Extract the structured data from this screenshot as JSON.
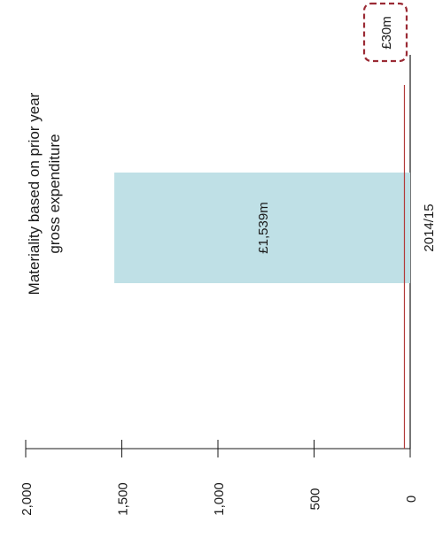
{
  "chart_data": {
    "type": "bar",
    "orientation": "rotated-90-ccw",
    "title_lines": [
      "Materiality based on prior year",
      "gross expenditure"
    ],
    "categories": [
      "2014/15"
    ],
    "values": [
      1539
    ],
    "value_labels": [
      "£1,539m"
    ],
    "reference_line": {
      "value": 30,
      "label": "£30m"
    },
    "ylim": [
      0,
      2000
    ],
    "yticks": [
      0,
      500,
      1000,
      1500,
      2000
    ],
    "ytick_labels": [
      "0",
      "500",
      "1,000",
      "1,500",
      "2,000"
    ],
    "colors": {
      "bar": "#bfe0e6",
      "reference_line": "#b23a3a",
      "reference_box": "#9b2b35",
      "axis": "#1a1a1a"
    },
    "grid": false,
    "legend": "none"
  }
}
